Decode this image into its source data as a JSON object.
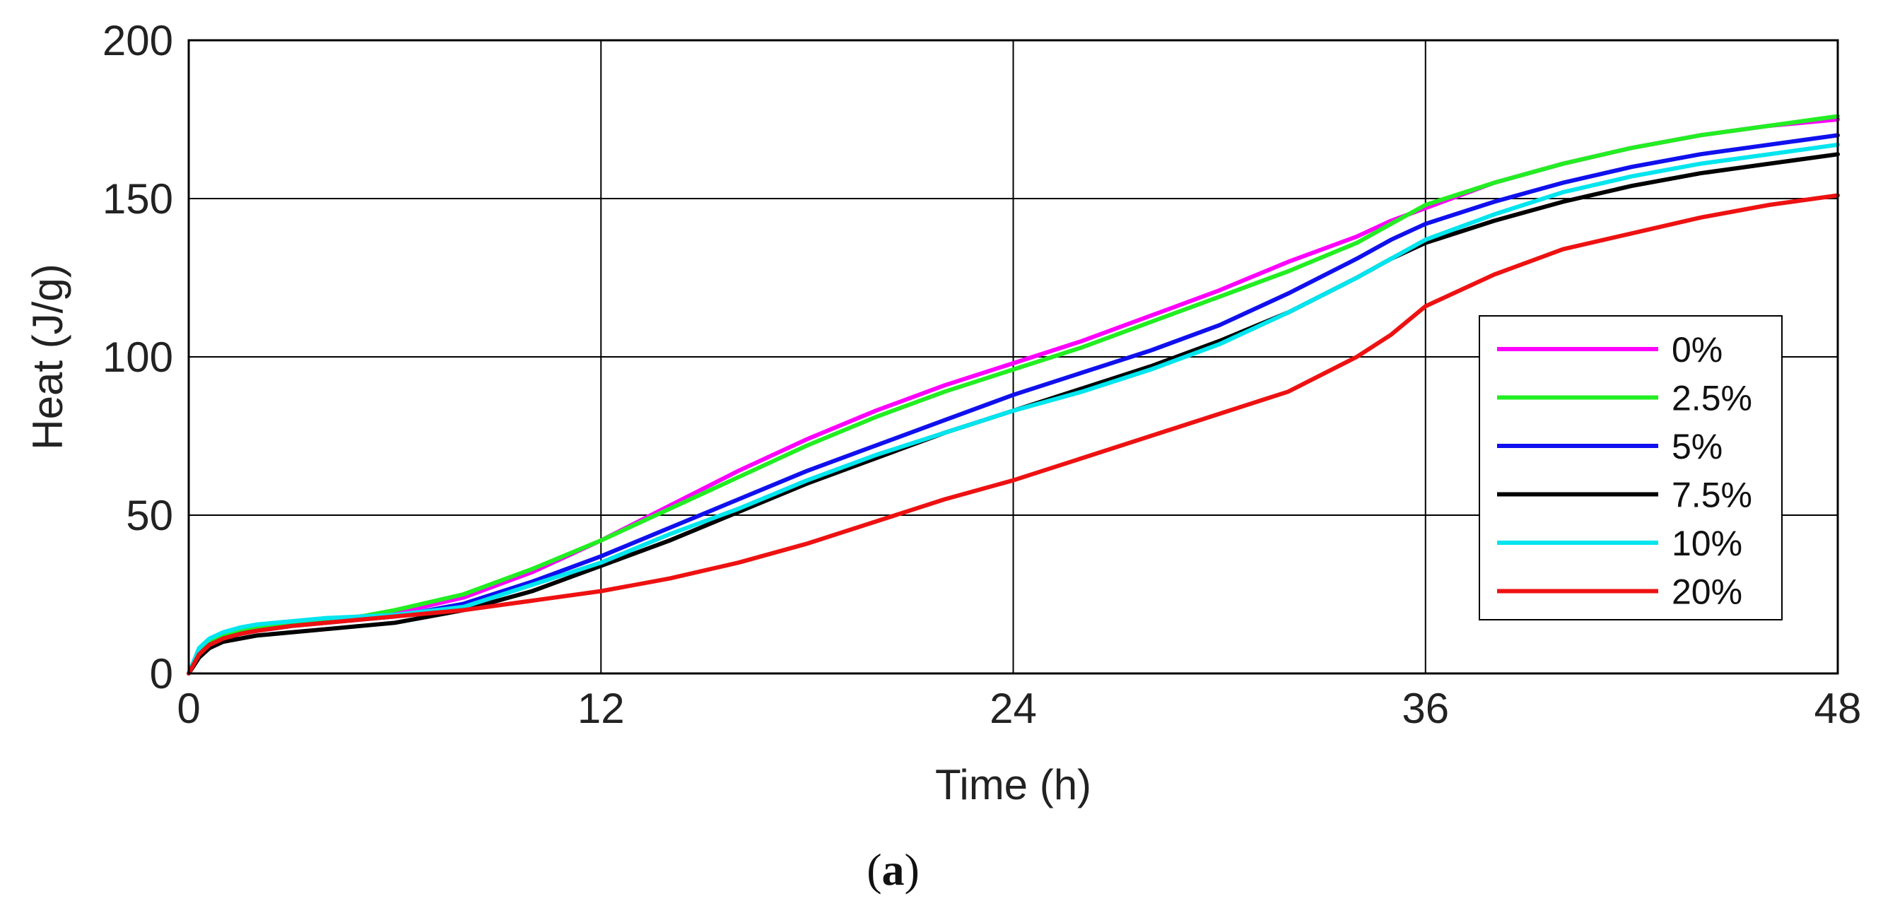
{
  "chart_data": {
    "type": "line",
    "title": "",
    "xlabel": "Time (h)",
    "ylabel": "Heat (J/g)",
    "xlim": [
      0,
      48
    ],
    "ylim": [
      0,
      200
    ],
    "xticks": [
      0,
      12,
      24,
      36,
      48
    ],
    "yticks": [
      0,
      50,
      100,
      150,
      200
    ],
    "grid": true,
    "legend_position": "right",
    "caption_open": "(",
    "caption_letter": "a",
    "caption_close": ")",
    "x": [
      0,
      0.3,
      0.6,
      1,
      1.5,
      2,
      3,
      4,
      5,
      6,
      8,
      10,
      12,
      14,
      16,
      18,
      20,
      22,
      24,
      26,
      28,
      30,
      32,
      34,
      35,
      36,
      38,
      40,
      42,
      44,
      46,
      48
    ],
    "series": [
      {
        "name": "0%",
        "color": "#ff00ff",
        "values": [
          0,
          7,
          10,
          12,
          13.5,
          14.5,
          16,
          17,
          18,
          19,
          24,
          32,
          42,
          53,
          64,
          74,
          83,
          91,
          98,
          105,
          113,
          121,
          130,
          138,
          143,
          147,
          155,
          161,
          166,
          170,
          173,
          175
        ]
      },
      {
        "name": "2.5%",
        "color": "#22ee22",
        "values": [
          0,
          7,
          10,
          12,
          13.5,
          14.5,
          16,
          17,
          18,
          20,
          25,
          33,
          42,
          52,
          62,
          72,
          81,
          89,
          96,
          103,
          111,
          119,
          127,
          136,
          142,
          148,
          155,
          161,
          166,
          170,
          173,
          176
        ]
      },
      {
        "name": "5%",
        "color": "#1010ee",
        "values": [
          0,
          6,
          9,
          11,
          12.5,
          13.5,
          15,
          16,
          17,
          18,
          22,
          29,
          37,
          46,
          55,
          64,
          72,
          80,
          88,
          95,
          102,
          110,
          120,
          131,
          137,
          142,
          149,
          155,
          160,
          164,
          167,
          170
        ]
      },
      {
        "name": "7.5%",
        "color": "#000000",
        "values": [
          0,
          5,
          8,
          10,
          11,
          12,
          13,
          14,
          15,
          16,
          20,
          26,
          34,
          42,
          51,
          60,
          68,
          76,
          83,
          90,
          97,
          105,
          114,
          125,
          131,
          136,
          143,
          149,
          154,
          158,
          161,
          164
        ]
      },
      {
        "name": "10%",
        "color": "#00e5ee",
        "values": [
          0,
          8,
          11,
          13,
          14.5,
          15.5,
          16.5,
          17.5,
          18,
          18.5,
          21,
          28,
          35,
          44,
          52,
          61,
          69,
          76,
          83,
          89,
          96,
          104,
          114,
          125,
          131,
          137,
          145,
          152,
          157,
          161,
          164,
          167
        ]
      },
      {
        "name": "20%",
        "color": "#ee1111",
        "values": [
          0,
          6,
          9,
          11,
          12.5,
          13.5,
          15,
          16,
          17,
          18,
          20,
          23,
          26,
          30,
          35,
          41,
          48,
          55,
          61,
          68,
          75,
          82,
          89,
          100,
          107,
          116,
          126,
          134,
          139,
          144,
          148,
          151
        ]
      }
    ]
  }
}
